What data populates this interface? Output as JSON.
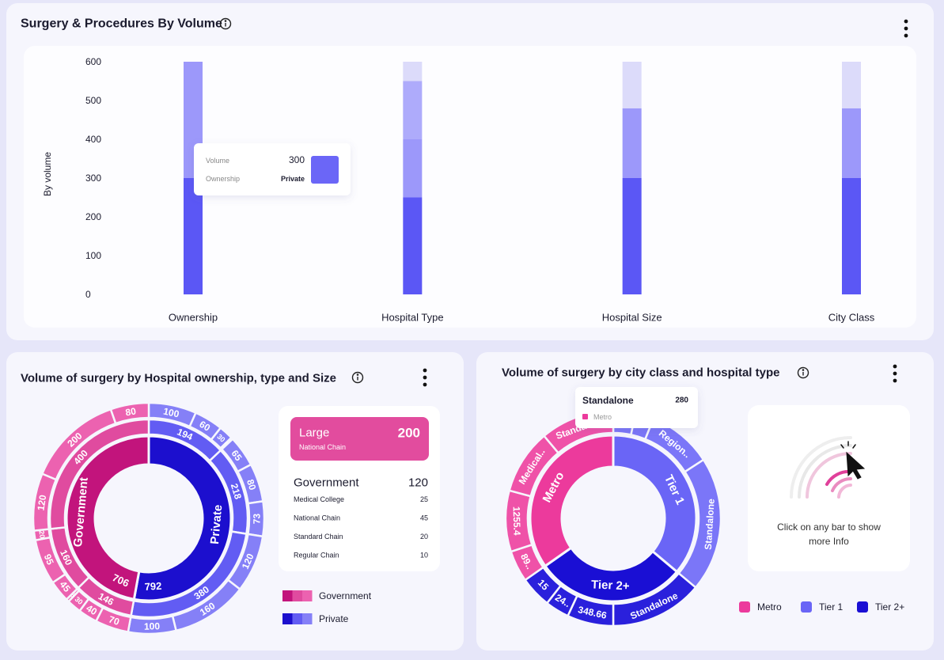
{
  "chart_data": [
    {
      "type": "bar",
      "stacked": true,
      "title": "Surgery & Procedures By Volume",
      "y_label": "By volume",
      "categories": [
        "Ownership",
        "Hospital Type",
        "Hospital Size",
        "City Class"
      ],
      "series": [
        {
          "color": "#5b57f5",
          "values": [
            300,
            250,
            300,
            300
          ]
        },
        {
          "color": "#9c98fa",
          "values": [
            300,
            150,
            180,
            180
          ]
        },
        {
          "color": "#aeabfb",
          "values": [
            null,
            150,
            null,
            null
          ]
        },
        {
          "color": "#dcdbfa",
          "values": [
            null,
            50,
            120,
            120
          ]
        }
      ],
      "ylim": [
        0,
        600
      ],
      "yticks": [
        0,
        100,
        200,
        300,
        400,
        500,
        600
      ],
      "grid": false,
      "tooltip": {
        "value_name": "Volume",
        "value": 300,
        "category_name": "Ownership",
        "series_label": "Private",
        "color": "#6b66f7"
      }
    },
    {
      "type": "sunburst",
      "title": "Volume of surgery by Hospital ownership, type and Size",
      "nodes": [
        {
          "name": "Private",
          "value": 792,
          "colors": [
            "#1c0fce",
            "#625cf3",
            "#8580f7"
          ],
          "children": [
            {
              "value": 194,
              "children": [
                {
                  "value": 100
                },
                {
                  "value": 60
                },
                {
                  "value": 30
                },
                {
                  "value": 4
                }
              ]
            },
            {
              "value": 218,
              "children": [
                {
                  "value": 65
                },
                {
                  "value": 80
                },
                {
                  "value": 73
                }
              ]
            },
            {
              "value": 380,
              "children": [
                {
                  "value": 120
                },
                {
                  "value": 160
                },
                {
                  "value": 100
                }
              ]
            }
          ]
        },
        {
          "name": "Government",
          "value": 706,
          "colors": [
            "#c2147c",
            "#e04b9f",
            "#ec62b0"
          ],
          "children": [
            {
              "value": 146,
              "children": [
                {
                  "value": 70
                },
                {
                  "value": 40
                },
                {
                  "value": 30
                },
                {
                  "value": 6
                }
              ]
            },
            {
              "value": 160,
              "children": [
                {
                  "value": 45
                },
                {
                  "value": 95
                },
                {
                  "value": 20
                }
              ]
            },
            {
              "value": 400,
              "children": [
                {
                  "value": 120
                },
                {
                  "value": 200
                },
                {
                  "value": 80
                }
              ]
            }
          ]
        }
      ],
      "detail": {
        "header": {
          "name": "Large",
          "value": 200,
          "sub": "National Chain"
        },
        "group": {
          "name": "Government",
          "value": 120,
          "rows": [
            {
              "name": "Medical College",
              "value": 25
            },
            {
              "name": "National Chain",
              "value": 45
            },
            {
              "name": "Standard Chain",
              "value": 20
            },
            {
              "name": "Regular Chain",
              "value": 10
            }
          ]
        }
      }
    },
    {
      "type": "sunburst",
      "title": "Volume of surgery by city class and hospital type",
      "nodes": [
        {
          "name": "Tier 1",
          "value": 130,
          "colors": [
            "#6a65f6",
            "#7b76f8"
          ],
          "children": [
            {
              "name": null,
              "value": 12
            },
            {
              "name": null,
              "value": 10
            },
            {
              "name": "Region..",
              "value": 35
            },
            {
              "name": "Standalone",
              "value": 73
            }
          ]
        },
        {
          "name": "Tier 2+",
          "value": 105,
          "colors": [
            "#1a0fd4",
            "#2a20dc"
          ],
          "children": [
            {
              "name": "Standalone",
              "value": 50
            },
            {
              "name": "348.66",
              "value": 25
            },
            {
              "name": "24..",
              "value": 13
            },
            {
              "name": "15",
              "value": 17
            }
          ]
        },
        {
          "name": "Metro",
          "value": 125,
          "colors": [
            "#ec3a9c",
            "#ef52a8"
          ],
          "children": [
            {
              "name": "89..",
              "value": 17
            },
            {
              "name": "1255.4",
              "value": 33
            },
            {
              "name": "Medical..",
              "value": 35
            },
            {
              "name": "Standalone",
              "value": 40
            }
          ]
        }
      ],
      "tooltip": {
        "name": "Standalone",
        "value": 280,
        "group": "Metro",
        "color": "#ec3a9c"
      },
      "hint": "Click on any bar to show more Info"
    }
  ]
}
